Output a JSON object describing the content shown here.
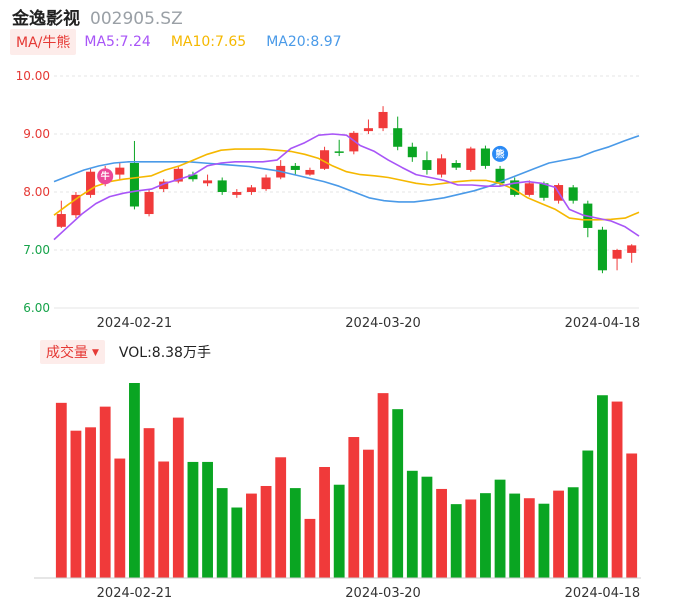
{
  "stock": {
    "name": "金逸影视",
    "code": "002905.SZ"
  },
  "ma_legend": {
    "toggle_label": "MA/牛熊",
    "items": [
      {
        "label": "MA5:7.24",
        "color": "#a855f7"
      },
      {
        "label": "MA10:7.65",
        "color": "#f5b800"
      },
      {
        "label": "MA20:8.97",
        "color": "#4a9ae8"
      }
    ]
  },
  "volume_legend": {
    "toggle_label": "成交量",
    "caret": "▼",
    "text": "VOL:8.38万手"
  },
  "badges": [
    {
      "icon": "bull-icon",
      "text": "牛",
      "index": 3,
      "color": "#ec4899"
    },
    {
      "icon": "bear-icon",
      "text": "熊",
      "index": 30,
      "color": "#2b8af5"
    }
  ],
  "colors": {
    "up": "#f03a3a",
    "down": "#0aa522",
    "grid": "#e5e5e5"
  },
  "chart_data": [
    {
      "type": "candlestick",
      "y_ticks": [
        "10.00",
        "9.00",
        "8.00",
        "7.00",
        "6.00"
      ],
      "ylim": [
        6.0,
        10.0
      ],
      "x_labels": [
        {
          "label": "2024-02-21",
          "index": 5
        },
        {
          "label": "2024-03-20",
          "index": 22
        },
        {
          "label": "2024-04-18",
          "index": 37
        }
      ],
      "ohlc": [
        [
          7.4,
          7.62,
          7.38,
          7.85
        ],
        [
          7.6,
          7.95,
          7.55,
          8.0
        ],
        [
          7.95,
          8.35,
          7.9,
          8.4
        ],
        [
          8.32,
          8.35,
          8.1,
          8.45
        ],
        [
          8.3,
          8.42,
          8.2,
          8.5
        ],
        [
          8.5,
          7.75,
          7.7,
          8.88
        ],
        [
          7.62,
          8.0,
          7.58,
          8.05
        ],
        [
          8.05,
          8.18,
          8.0,
          8.22
        ],
        [
          8.18,
          8.4,
          8.15,
          8.45
        ],
        [
          8.3,
          8.22,
          8.18,
          8.35
        ],
        [
          8.15,
          8.2,
          8.1,
          8.3
        ],
        [
          8.2,
          8.0,
          7.95,
          8.25
        ],
        [
          7.95,
          8.0,
          7.9,
          8.05
        ],
        [
          8.0,
          8.08,
          7.95,
          8.12
        ],
        [
          8.05,
          8.25,
          8.02,
          8.3
        ],
        [
          8.25,
          8.45,
          8.22,
          8.55
        ],
        [
          8.45,
          8.38,
          8.3,
          8.5
        ],
        [
          8.3,
          8.38,
          8.28,
          8.42
        ],
        [
          8.4,
          8.72,
          8.38,
          8.78
        ],
        [
          8.7,
          8.68,
          8.62,
          8.9
        ],
        [
          8.7,
          9.02,
          8.65,
          9.05
        ],
        [
          9.05,
          9.1,
          9.0,
          9.25
        ],
        [
          9.1,
          9.38,
          9.05,
          9.48
        ],
        [
          9.1,
          8.78,
          8.72,
          9.3
        ],
        [
          8.78,
          8.6,
          8.52,
          8.85
        ],
        [
          8.55,
          8.38,
          8.3,
          8.7
        ],
        [
          8.3,
          8.58,
          8.25,
          8.65
        ],
        [
          8.5,
          8.42,
          8.38,
          8.55
        ],
        [
          8.38,
          8.75,
          8.35,
          8.78
        ],
        [
          8.75,
          8.45,
          8.4,
          8.8
        ],
        [
          8.4,
          8.15,
          8.1,
          8.45
        ],
        [
          8.2,
          7.95,
          7.92,
          8.25
        ],
        [
          7.95,
          8.15,
          7.92,
          8.2
        ],
        [
          8.15,
          7.9,
          7.85,
          8.18
        ],
        [
          7.85,
          8.12,
          7.8,
          8.15
        ],
        [
          8.08,
          7.85,
          7.8,
          8.12
        ],
        [
          7.8,
          7.38,
          7.22,
          7.85
        ],
        [
          7.35,
          6.65,
          6.6,
          7.4
        ],
        [
          6.85,
          7.0,
          6.65,
          7.02
        ],
        [
          6.95,
          7.08,
          6.78,
          7.1
        ]
      ],
      "ma5": [
        7.18,
        7.4,
        7.62,
        7.8,
        7.92,
        7.98,
        8.02,
        8.05,
        8.15,
        8.22,
        8.3,
        8.45,
        8.5,
        8.52,
        8.52,
        8.52,
        8.55,
        8.75,
        8.85,
        8.98,
        9.0,
        8.98,
        8.8,
        8.7,
        8.55,
        8.42,
        8.3,
        8.25,
        8.2,
        8.12,
        8.12,
        8.1,
        8.1,
        8.15,
        8.18,
        8.15,
        8.08,
        7.7,
        7.6,
        7.55,
        7.5,
        7.4,
        7.24
      ],
      "ma10": [
        7.6,
        7.78,
        7.95,
        8.1,
        8.18,
        8.22,
        8.25,
        8.28,
        8.38,
        8.45,
        8.55,
        8.65,
        8.72,
        8.74,
        8.74,
        8.74,
        8.72,
        8.7,
        8.65,
        8.58,
        8.45,
        8.35,
        8.3,
        8.28,
        8.25,
        8.2,
        8.15,
        8.12,
        8.15,
        8.18,
        8.2,
        8.2,
        8.15,
        8.05,
        7.9,
        7.8,
        7.7,
        7.55,
        7.52,
        7.52,
        7.53,
        7.55,
        7.65
      ],
      "ma20": [
        8.18,
        8.28,
        8.38,
        8.45,
        8.5,
        8.52,
        8.52,
        8.52,
        8.52,
        8.52,
        8.5,
        8.48,
        8.46,
        8.44,
        8.4,
        8.36,
        8.3,
        8.24,
        8.18,
        8.1,
        8.0,
        7.9,
        7.85,
        7.83,
        7.83,
        7.86,
        7.9,
        7.96,
        8.02,
        8.1,
        8.2,
        8.3,
        8.4,
        8.5,
        8.55,
        8.6,
        8.7,
        8.78,
        8.88,
        8.97
      ],
      "ma_x_start": -0.5,
      "ma_x_end": 39.5
    },
    {
      "type": "bar",
      "volumes": [
        41.5,
        34.9,
        35.7,
        40.6,
        28.3,
        46.2,
        35.5,
        27.6,
        38.0,
        27.5,
        27.5,
        21.3,
        16.7,
        20.0,
        21.8,
        28.6,
        21.3,
        14.0,
        26.3,
        22.1,
        33.4,
        30.4,
        43.8,
        40.0,
        25.4,
        24.0,
        21.1,
        17.5,
        18.6,
        20.1,
        23.3,
        20.0,
        18.9,
        17.6,
        20.7,
        21.5,
        30.2,
        43.3,
        41.8,
        29.5
      ],
      "colors": [
        "up",
        "up",
        "up",
        "up",
        "up",
        "down",
        "up",
        "up",
        "up",
        "down",
        "down",
        "down",
        "down",
        "up",
        "up",
        "up",
        "down",
        "up",
        "up",
        "down",
        "up",
        "up",
        "up",
        "down",
        "down",
        "down",
        "up",
        "down",
        "up",
        "down",
        "down",
        "down",
        "up",
        "down",
        "up",
        "down",
        "down",
        "down",
        "up",
        "up"
      ]
    }
  ]
}
